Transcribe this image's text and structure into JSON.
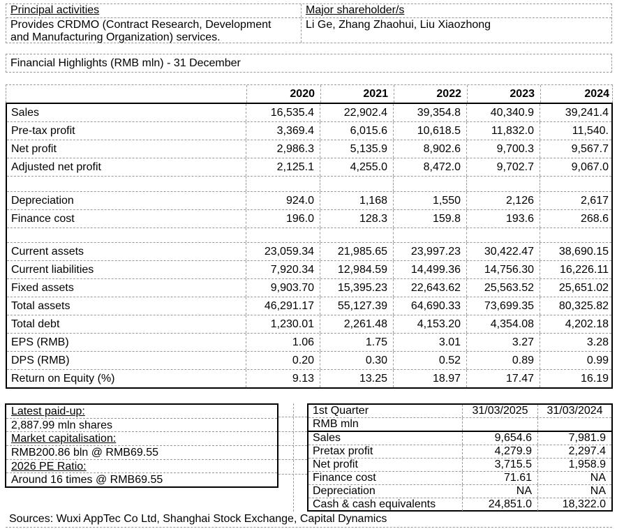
{
  "top": {
    "principal_activities_label": "Principal activities",
    "principal_activities_lines": [
      "Provides CRDMO (Contract Research, Development",
      "and Manufacturing Organization) services."
    ],
    "major_shareholders_label": "Major shareholder/s",
    "major_shareholders_text": "Li Ge, Zhang Zhaohui, Liu Xiaozhong"
  },
  "section_title": "Financial Highlights (RMB mln) - 31 December",
  "main_table": {
    "years": [
      "2020",
      "2021",
      "2022",
      "2023",
      "2024"
    ],
    "rows": [
      {
        "label": "Sales",
        "values": [
          "16,535.4",
          "22,902.4",
          "39,354.8",
          "40,340.9",
          "39,241.4"
        ]
      },
      {
        "label": "Pre-tax profit",
        "values": [
          "3,369.4",
          "6,015.6",
          "10,618.5",
          "11,832.0",
          "11,540."
        ]
      },
      {
        "label": "Net profit",
        "values": [
          "2,986.3",
          "5,135.9",
          "8,902.6",
          "9,700.3",
          "9,567.7"
        ]
      },
      {
        "label": "Adjusted net profit",
        "values": [
          "2,125.1",
          "4,255.0",
          "8,472.0",
          "9,702.7",
          "9,067.0"
        ]
      },
      {
        "label": "",
        "values": [
          "",
          "",
          "",
          "",
          ""
        ]
      },
      {
        "label": "Depreciation",
        "values": [
          "924.0",
          "1,168",
          "1,550",
          "2,126",
          "2,617"
        ]
      },
      {
        "label": "Finance cost",
        "values": [
          "196.0",
          "128.3",
          "159.8",
          "193.6",
          "268.6"
        ]
      },
      {
        "label": "",
        "values": [
          "",
          "",
          "",
          "",
          ""
        ]
      },
      {
        "label": "Current assets",
        "values": [
          "23,059.34",
          "21,985.65",
          "23,997.23",
          "30,422.47",
          "38,690.15"
        ]
      },
      {
        "label": "Current liabilities",
        "values": [
          "7,920.34",
          "12,984.59",
          "14,499.36",
          "14,756.30",
          "16,226.11"
        ]
      },
      {
        "label": "Fixed assets",
        "values": [
          "9,903.70",
          "15,395.23",
          "22,643.62",
          "25,563.52",
          "25,651.02"
        ]
      },
      {
        "label": "Total assets",
        "values": [
          "46,291.17",
          "55,127.39",
          "64,690.33",
          "73,699.35",
          "80,325.82"
        ]
      },
      {
        "label": "Total debt",
        "values": [
          "1,230.01",
          "2,261.48",
          "4,153.20",
          "4,354.08",
          "4,202.18"
        ]
      },
      {
        "label": "EPS (RMB)",
        "values": [
          "1.06",
          "1.75",
          "3.01",
          "3.27",
          "3.28"
        ]
      },
      {
        "label": "DPS (RMB)",
        "values": [
          "0.20",
          "0.30",
          "0.52",
          "0.89",
          "0.99"
        ]
      },
      {
        "label": "Return on Equity (%)",
        "values": [
          "9.13",
          "13.25",
          "18.97",
          "17.47",
          "16.19"
        ]
      }
    ]
  },
  "paid_up_box": {
    "rows": [
      {
        "text": "Latest paid-up:",
        "underline": true
      },
      {
        "text": "2,887.99 mln shares",
        "underline": false
      },
      {
        "text": "Market capitalisation:",
        "underline": true
      },
      {
        "text": "RMB200.86 bln @ RMB69.55",
        "underline": false
      },
      {
        "text": "2026 PE Ratio:",
        "underline": true
      },
      {
        "text": "Around 16 times @ RMB69.55",
        "underline": false
      }
    ]
  },
  "quarter_table": {
    "header_label": "1st Quarter",
    "col1_label": "31/03/2025",
    "col2_label": "31/03/2024",
    "subheader": "RMB mln",
    "rows": [
      {
        "label": "Sales",
        "v1": "9,654.6",
        "v2": "7,981.9"
      },
      {
        "label": "Pretax profit",
        "v1": "4,279.9",
        "v2": "2,297.4"
      },
      {
        "label": "Net profit",
        "v1": "3,715.5",
        "v2": "1,958.9"
      },
      {
        "label": "Finance cost",
        "v1": "71.61",
        "v2": "NA"
      },
      {
        "label": "Depreciation",
        "v1": "NA",
        "v2": "NA"
      },
      {
        "label": "Cash & cash equivalents",
        "v1": "24,851.0",
        "v2": "18,322.0"
      }
    ]
  },
  "sources": "Sources: Wuxi AppTec Co Ltd, Shanghai Stock Exchange, Capital Dynamics"
}
